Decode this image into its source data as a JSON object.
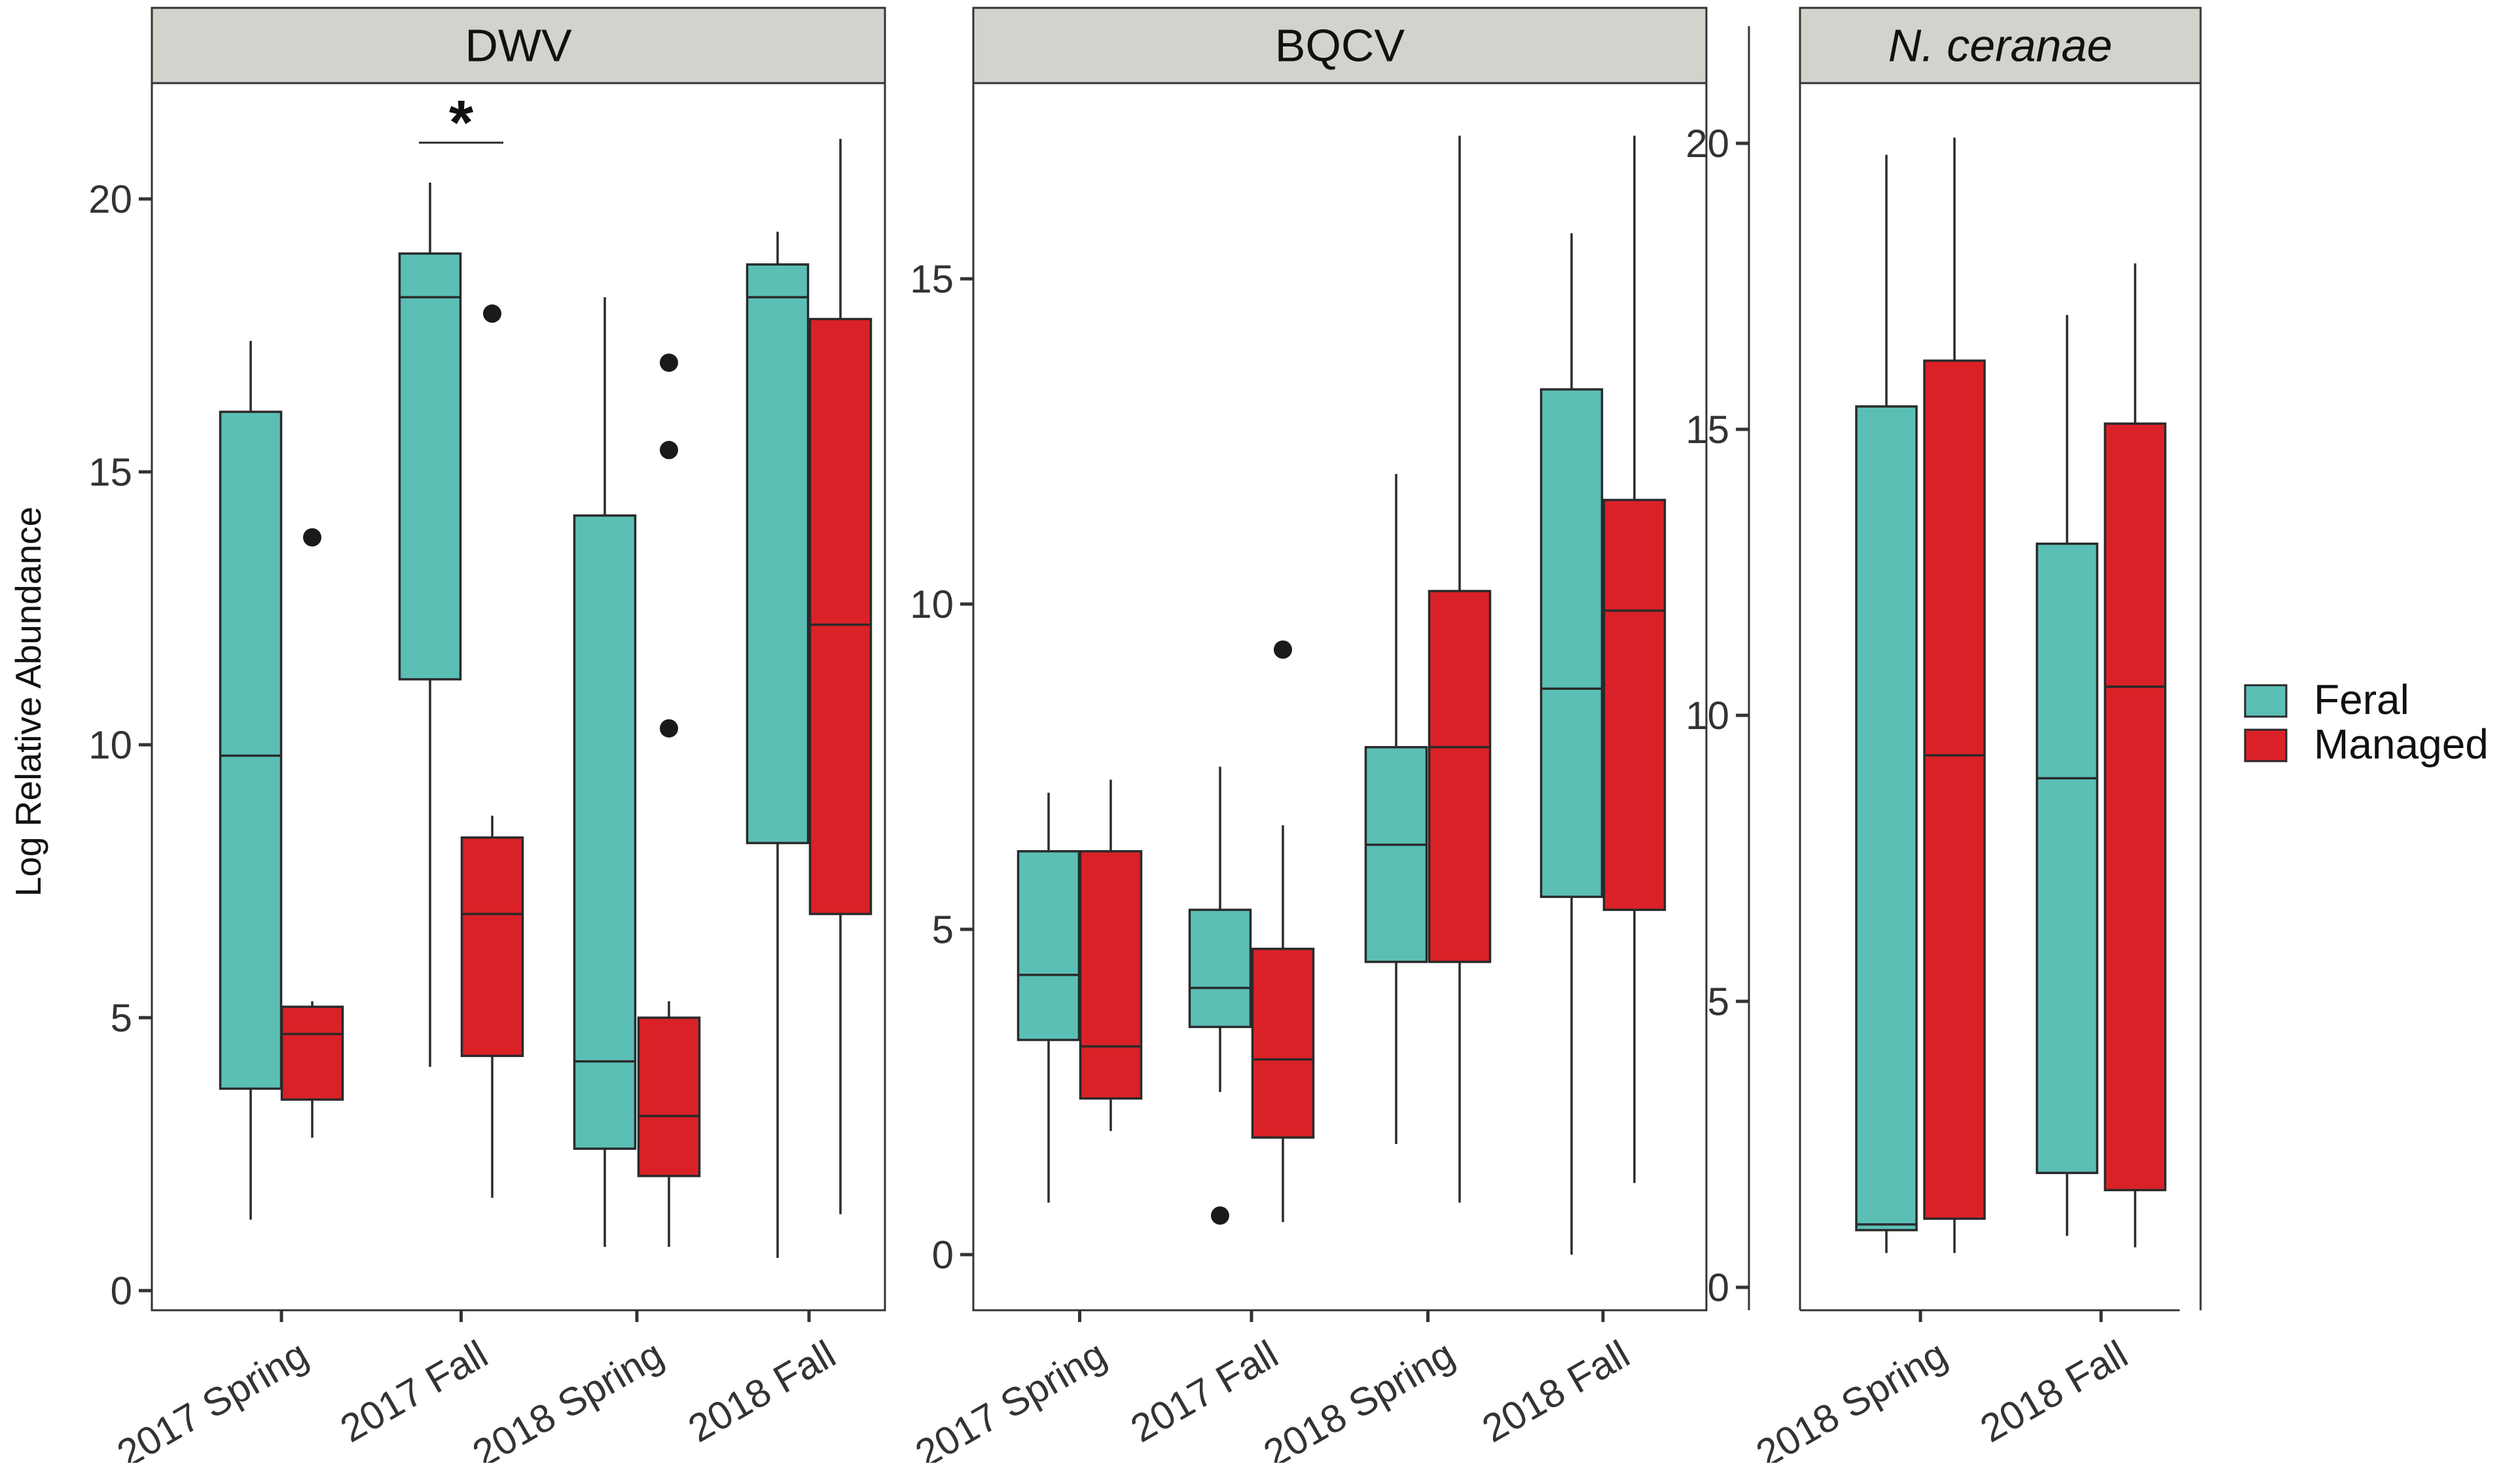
{
  "colors": {
    "feral": "#5bbfb6",
    "managed": "#db2128",
    "strip": "#d3d3ce",
    "outlier": "#1a1a1a"
  },
  "ylabel": "Log Relative Abundance",
  "legend": {
    "title": "",
    "placement": "right",
    "items": [
      "Feral",
      "Managed"
    ]
  },
  "chart_data": [
    {
      "type": "boxplot",
      "title": "DWV",
      "title_italic": false,
      "ylim": [
        0,
        22
      ],
      "yticks": [
        0,
        5,
        10,
        15,
        20
      ],
      "categories": [
        "2017 Spring",
        "2017 Fall",
        "2018 Spring",
        "2018 Fall"
      ],
      "annotation": {
        "label": "*",
        "category": "2017 Fall"
      },
      "series": [
        {
          "name": "Feral",
          "boxes": [
            {
              "category": "2017 Spring",
              "min": 1.3,
              "q1": 3.7,
              "median": 9.8,
              "q3": 16.1,
              "max": 17.4,
              "outliers": []
            },
            {
              "category": "2017 Fall",
              "min": 4.1,
              "q1": 11.2,
              "median": 18.2,
              "q3": 19.0,
              "max": 20.3,
              "outliers": []
            },
            {
              "category": "2018 Spring",
              "min": 0.8,
              "q1": 2.6,
              "median": 4.2,
              "q3": 14.2,
              "max": 18.2,
              "outliers": []
            },
            {
              "category": "2018 Fall",
              "min": 0.6,
              "q1": 8.2,
              "median": 18.2,
              "q3": 18.8,
              "max": 19.4,
              "outliers": []
            }
          ]
        },
        {
          "name": "Managed",
          "boxes": [
            {
              "category": "2017 Spring",
              "min": 2.8,
              "q1": 3.5,
              "median": 4.7,
              "q3": 5.2,
              "max": 5.3,
              "outliers": [
                13.8
              ]
            },
            {
              "category": "2017 Fall",
              "min": 1.7,
              "q1": 4.3,
              "median": 6.9,
              "q3": 8.3,
              "max": 8.7,
              "outliers": [
                17.9
              ]
            },
            {
              "category": "2018 Spring",
              "min": 0.8,
              "q1": 2.1,
              "median": 3.2,
              "q3": 5.0,
              "max": 5.3,
              "outliers": [
                10.3,
                15.4,
                17.0
              ]
            },
            {
              "category": "2018 Fall",
              "min": 1.4,
              "q1": 6.9,
              "median": 12.2,
              "q3": 17.8,
              "max": 21.1,
              "outliers": []
            }
          ]
        }
      ]
    },
    {
      "type": "boxplot",
      "title": "BQCV",
      "title_italic": false,
      "ylim": [
        -0.5,
        18.3
      ],
      "yticks": [
        0,
        5,
        10,
        15
      ],
      "categories": [
        "2017 Spring",
        "2017 Fall",
        "2018 Spring",
        "2018 Fall"
      ],
      "series": [
        {
          "name": "Feral",
          "boxes": [
            {
              "category": "2017 Spring",
              "min": 0.8,
              "q1": 3.3,
              "median": 4.3,
              "q3": 6.2,
              "max": 7.1,
              "outliers": []
            },
            {
              "category": "2017 Fall",
              "min": 2.5,
              "q1": 3.5,
              "median": 4.1,
              "q3": 5.3,
              "max": 7.5,
              "outliers": [
                0.6
              ]
            },
            {
              "category": "2018 Spring",
              "min": 1.7,
              "q1": 4.5,
              "median": 6.3,
              "q3": 7.8,
              "max": 12.0,
              "outliers": []
            },
            {
              "category": "2018 Fall",
              "min": 0.0,
              "q1": 5.5,
              "median": 8.7,
              "q3": 13.3,
              "max": 15.7,
              "outliers": []
            }
          ]
        },
        {
          "name": "Managed",
          "boxes": [
            {
              "category": "2017 Spring",
              "min": 1.9,
              "q1": 2.4,
              "median": 3.2,
              "q3": 6.2,
              "max": 7.3,
              "outliers": []
            },
            {
              "category": "2017 Fall",
              "min": 0.5,
              "q1": 1.8,
              "median": 3.0,
              "q3": 4.7,
              "max": 6.6,
              "outliers": [
                9.3
              ]
            },
            {
              "category": "2018 Spring",
              "min": 0.8,
              "q1": 4.5,
              "median": 7.8,
              "q3": 10.2,
              "max": 17.2,
              "outliers": []
            },
            {
              "category": "2018 Fall",
              "min": 1.1,
              "q1": 5.3,
              "median": 9.9,
              "q3": 11.6,
              "max": 17.2,
              "outliers": []
            }
          ]
        }
      ]
    },
    {
      "type": "boxplot",
      "title": "N. ceranae",
      "title_italic": true,
      "ylim": [
        -0.4,
        21.1
      ],
      "yticks": [
        0,
        5,
        10,
        15,
        20
      ],
      "categories": [
        "2018 Spring",
        "2018 Fall"
      ],
      "series": [
        {
          "name": "Feral",
          "boxes": [
            {
              "category": "2018 Spring",
              "min": 0.6,
              "q1": 1.0,
              "median": 1.1,
              "q3": 15.4,
              "max": 19.8,
              "outliers": []
            },
            {
              "category": "2018 Fall",
              "min": 0.9,
              "q1": 2.0,
              "median": 8.9,
              "q3": 13.0,
              "max": 17.0,
              "outliers": []
            }
          ]
        },
        {
          "name": "Managed",
          "boxes": [
            {
              "category": "2018 Spring",
              "min": 0.6,
              "q1": 1.2,
              "median": 9.3,
              "q3": 16.2,
              "max": 20.1,
              "outliers": []
            },
            {
              "category": "2018 Fall",
              "min": 0.7,
              "q1": 1.7,
              "median": 10.5,
              "q3": 15.1,
              "max": 17.9,
              "outliers": []
            }
          ]
        }
      ]
    }
  ]
}
